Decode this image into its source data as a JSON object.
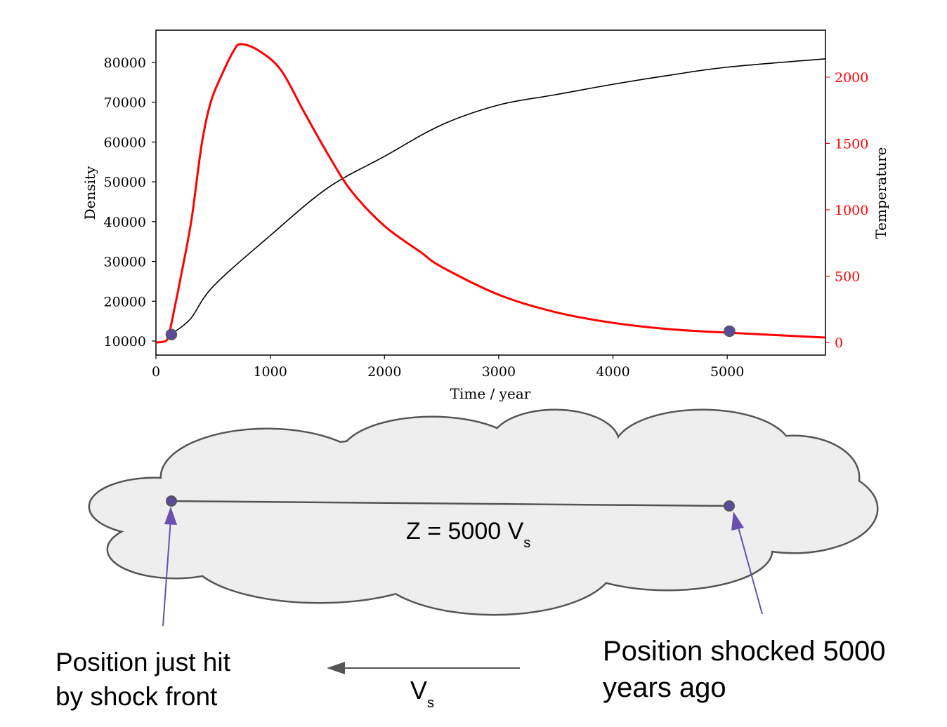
{
  "chart_data": {
    "type": "line",
    "xlabel": "Time / year",
    "ylabel": "Density",
    "y2label": "Temperature",
    "xlim": [
      0,
      5860
    ],
    "ylim": [
      6470,
      88100
    ],
    "y2lim": [
      -95,
      2354
    ],
    "grid": false,
    "xticks": [
      0,
      1000,
      2000,
      3000,
      4000,
      5000
    ],
    "yticks": [
      10000,
      20000,
      30000,
      40000,
      50000,
      60000,
      70000,
      80000
    ],
    "y2ticks": [
      0,
      500,
      1000,
      1500,
      2000
    ],
    "series": [
      {
        "axis": "left",
        "color": "#000000",
        "x": [
          130,
          300,
          500,
          1000,
          1500,
          2000,
          2500,
          3000,
          3500,
          4000,
          4500,
          5000,
          5860
        ],
        "y": [
          11700,
          15500,
          23700,
          36500,
          48400,
          56400,
          64300,
          69300,
          71900,
          74500,
          76800,
          78800,
          80900
        ]
      },
      {
        "axis": "right",
        "color": "#ff0000",
        "x": [
          0,
          60,
          100,
          129,
          234,
          313,
          400,
          479,
          584,
          682,
          744,
          900,
          1094,
          1298,
          1506,
          1709,
          2000,
          2323,
          2500,
          3000,
          3500,
          4000,
          4500,
          5000,
          5860
        ],
        "y": [
          0,
          5,
          25,
          116,
          566,
          936,
          1492,
          1810,
          2032,
          2201,
          2249,
          2200,
          2053,
          1735,
          1418,
          1143,
          878,
          677,
          570,
          360,
          228,
          148,
          100,
          74,
          37
        ]
      }
    ],
    "markers": {
      "axis": "right",
      "color": "#5b4a9e",
      "x": [
        135,
        5020
      ],
      "y": [
        60,
        85
      ]
    }
  },
  "diagram": {
    "distance_label": "Z = 5000 V",
    "distance_label_sub": "s",
    "left_label_line1": "Position just hit",
    "left_label_line2": "by shock front",
    "right_label_line1": "Position shocked 5000",
    "right_label_line2": "years ago",
    "velocity_label": "V",
    "velocity_label_sub": "s",
    "cloud_color": "#eeeeee",
    "point_color": "#5b4a9e",
    "arrow_color": "#6a4fb0"
  }
}
